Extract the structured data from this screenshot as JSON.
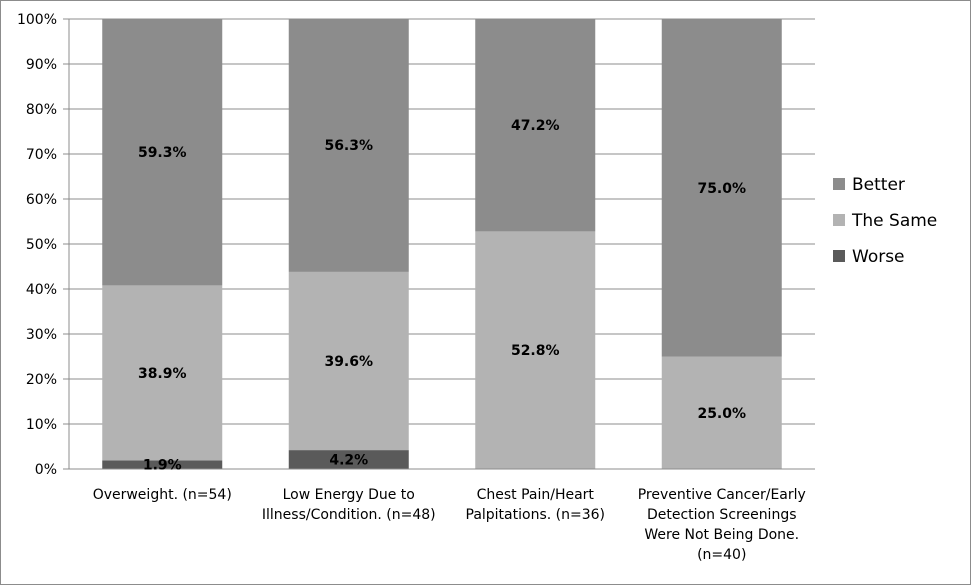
{
  "chart_data": {
    "type": "bar",
    "stacked": true,
    "title": "",
    "xlabel": "",
    "ylabel": "",
    "ylim": [
      0,
      100
    ],
    "y_ticks": [
      "0%",
      "10%",
      "20%",
      "30%",
      "40%",
      "50%",
      "60%",
      "70%",
      "80%",
      "90%",
      "100%"
    ],
    "grid": true,
    "legend_position": "right",
    "categories": [
      [
        "Overweight. (n=54)"
      ],
      [
        "Low Energy Due to",
        "Illness/Condition. (n=48)"
      ],
      [
        "Chest Pain/Heart",
        "Palpitations. (n=36)"
      ],
      [
        "Preventive Cancer/Early",
        "Detection Screenings",
        "Were Not Being Done.",
        "(n=40)"
      ]
    ],
    "series": [
      {
        "name": "Worse",
        "color": "#5a5a5a",
        "values": [
          1.9,
          4.2,
          0,
          0
        ],
        "labels": [
          "1.9%",
          "4.2%",
          "",
          ""
        ]
      },
      {
        "name": "The Same",
        "color": "#b3b3b3",
        "values": [
          38.9,
          39.6,
          52.8,
          25.0
        ],
        "labels": [
          "38.9%",
          "39.6%",
          "52.8%",
          "25.0%"
        ]
      },
      {
        "name": "Better",
        "color": "#8c8c8c",
        "values": [
          59.3,
          56.3,
          47.2,
          75.0
        ],
        "labels": [
          "59.3%",
          "56.3%",
          "47.2%",
          "75.0%"
        ]
      }
    ],
    "legend_order": [
      "Better",
      "The Same",
      "Worse"
    ]
  }
}
